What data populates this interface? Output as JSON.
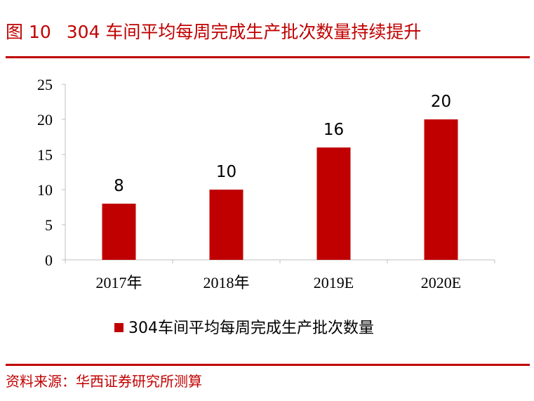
{
  "figure": {
    "number": "图 10",
    "title": "304 车间平均每周完成生产批次数量持续提升"
  },
  "source": {
    "label": "资料来源：",
    "text": "华西证券研究所测算"
  },
  "chart_data": {
    "type": "bar",
    "title": "304 车间平均每周完成生产批次数量持续提升",
    "categories": [
      "2017年",
      "2018年",
      "2019E",
      "2020E"
    ],
    "series": [
      {
        "name": "304车间平均每周完成生产批次数量",
        "values": [
          8,
          10,
          16,
          20
        ],
        "color": "#c00000"
      }
    ],
    "data_labels": [
      "8",
      "10",
      "16",
      "20"
    ],
    "xlabel": "",
    "ylabel": "",
    "ylim": [
      0,
      25
    ],
    "y_ticks": [
      0,
      5,
      10,
      15,
      20,
      25
    ],
    "grid": false,
    "legend_position": "bottom"
  },
  "colors": {
    "accent": "#c00000",
    "bar": "#c00000",
    "axis": "#bfbfbf"
  }
}
